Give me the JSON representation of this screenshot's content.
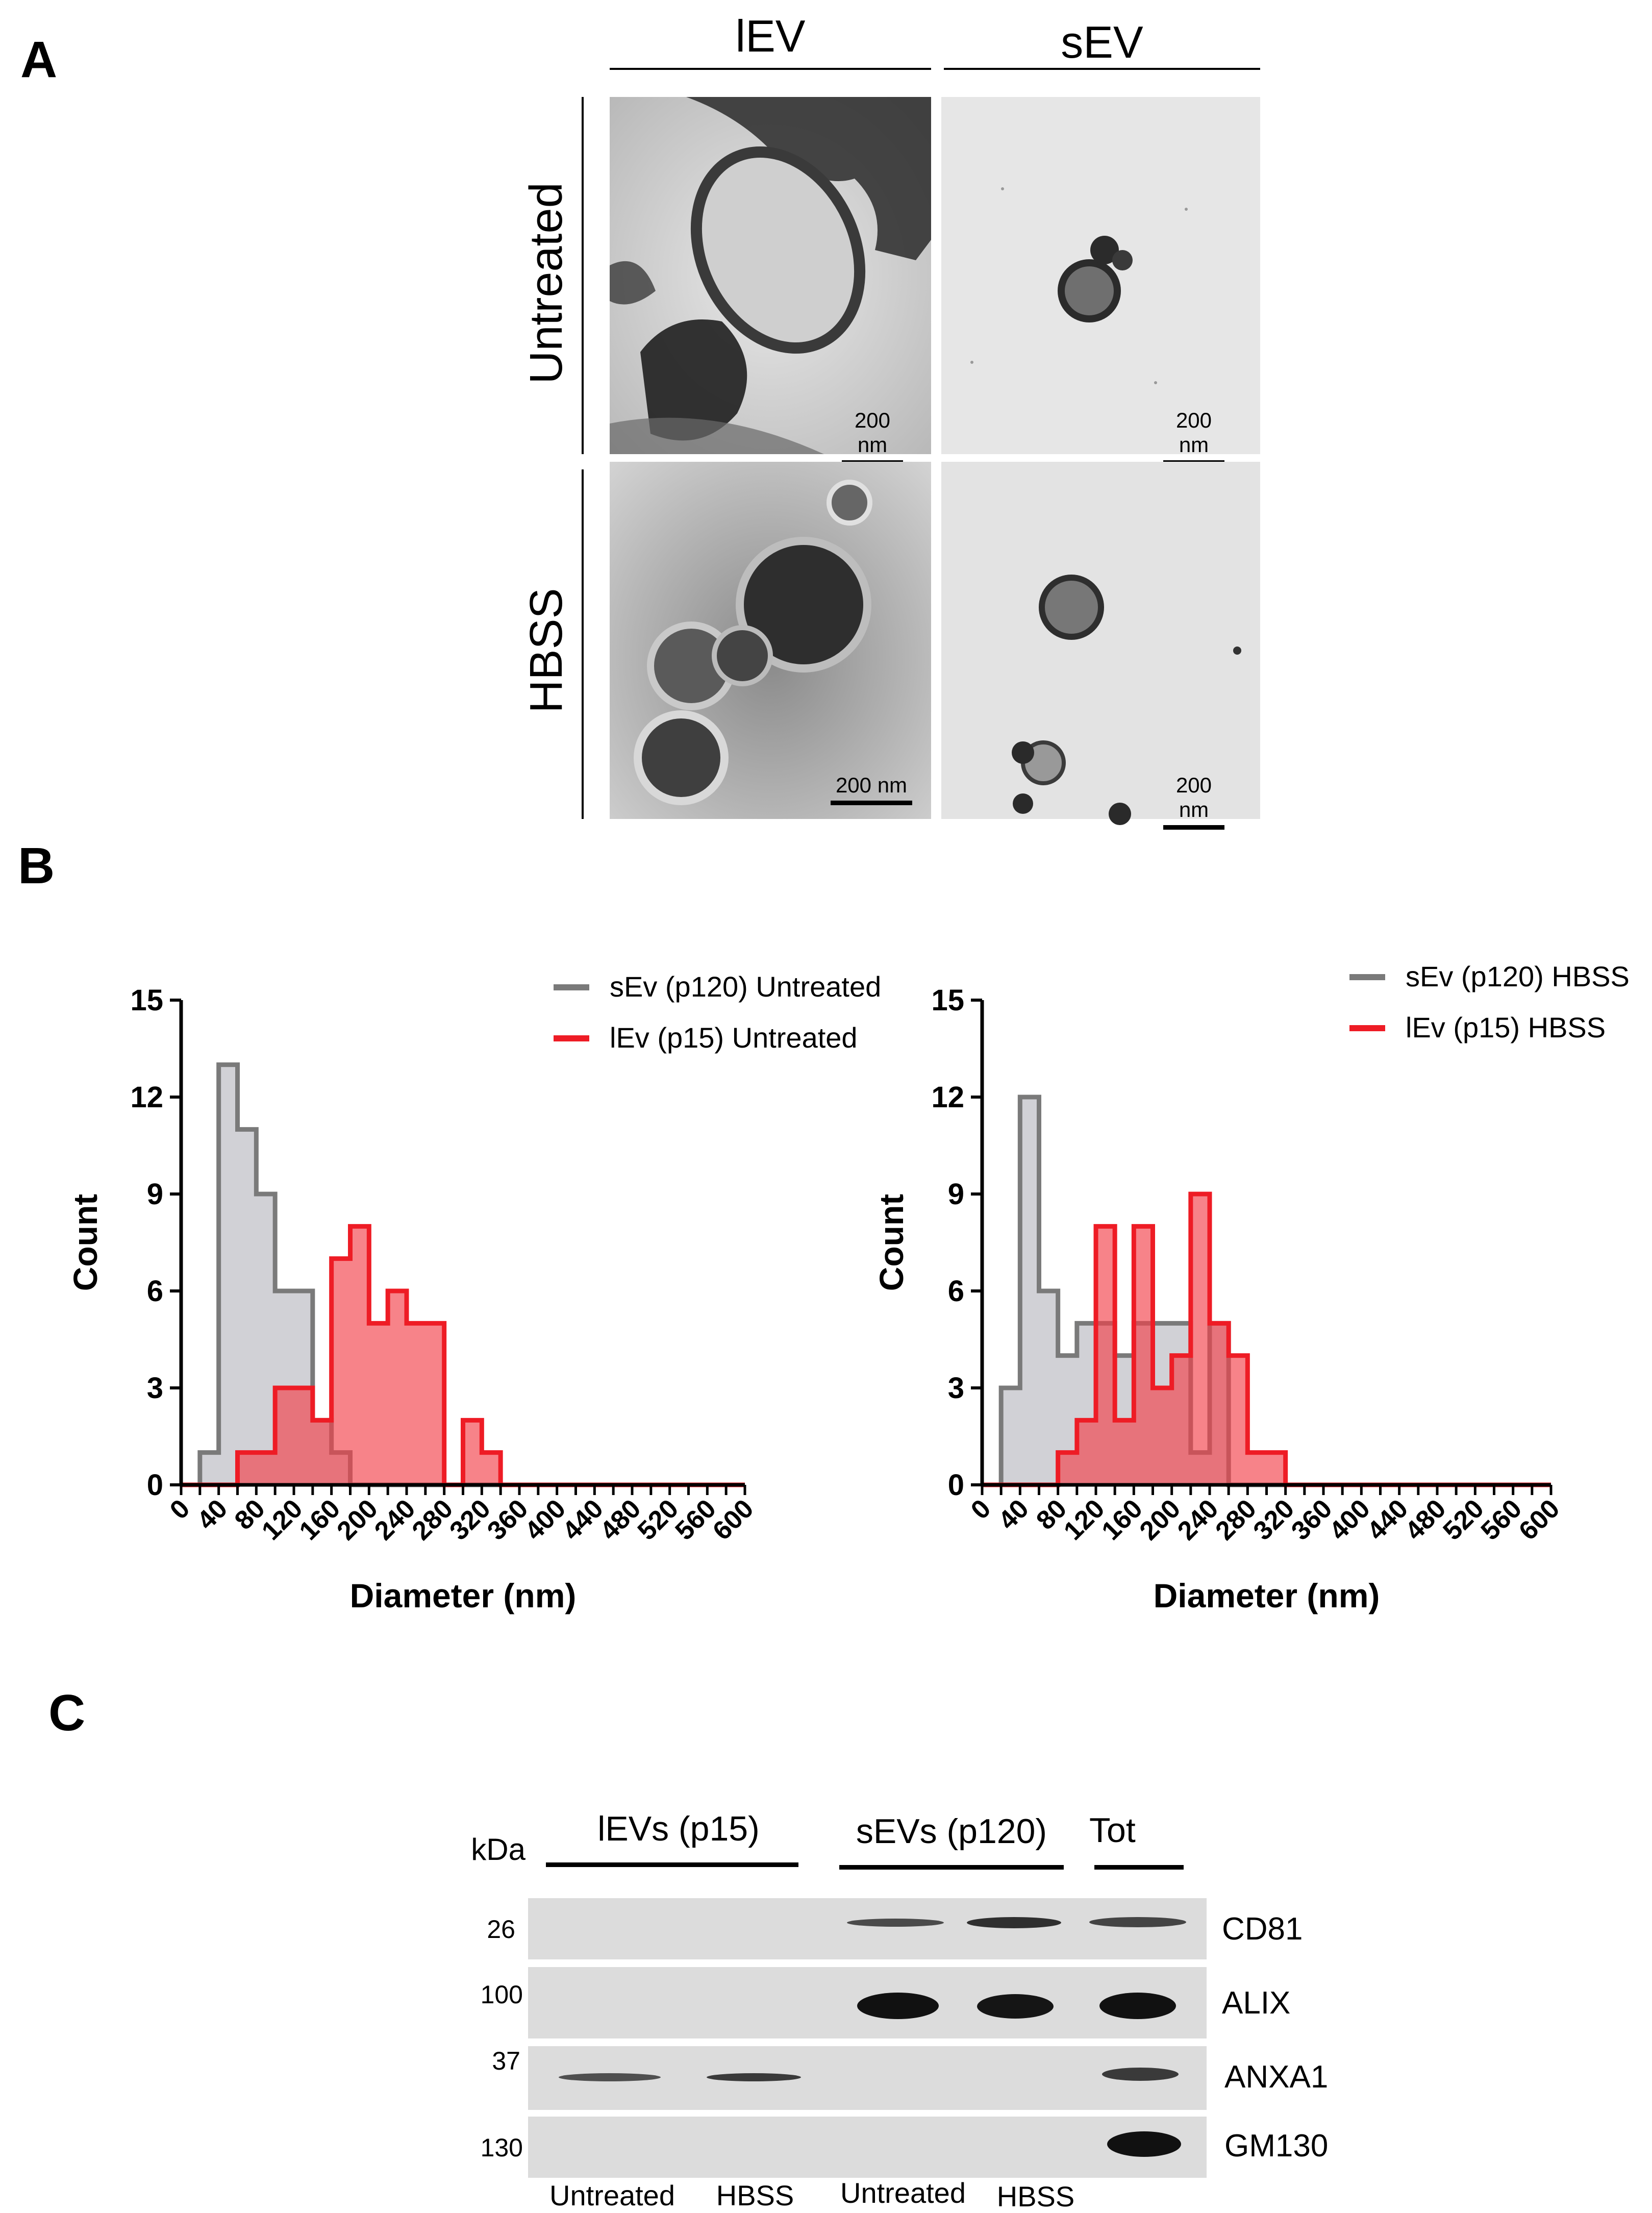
{
  "panels": {
    "a": "A",
    "b": "B",
    "c": "C"
  },
  "panel_a": {
    "col_headers": [
      "lEV",
      "sEV"
    ],
    "row_labels": [
      "Untreated",
      "HBSS"
    ],
    "scale_bar_label": "200 nm"
  },
  "chart_data": [
    {
      "type": "area",
      "step": true,
      "xlabel": "Diameter (nm)",
      "ylabel": "Count",
      "xlim": [
        0,
        600
      ],
      "ylim": [
        0,
        15
      ],
      "x_ticks": [
        "0",
        "40",
        "80",
        "120",
        "160",
        "200",
        "240",
        "280",
        "320",
        "360",
        "400",
        "440",
        "480",
        "520",
        "560",
        "600"
      ],
      "y_ticks": [
        "0",
        "3",
        "6",
        "9",
        "12",
        "15"
      ],
      "legend_position": "top-right",
      "bin_width": 20,
      "bin_start": 0,
      "series": [
        {
          "name": "sEv (p120) Untreated",
          "color": "#7a7a7a",
          "fill": "#b3b3bb",
          "values": [
            0,
            1,
            13,
            11,
            9,
            6,
            6,
            2,
            1,
            0,
            0,
            0,
            0,
            0,
            0,
            0,
            0,
            0,
            0,
            0,
            0,
            0,
            0,
            0,
            0,
            0,
            0,
            0,
            0,
            0
          ]
        },
        {
          "name": "lEv (p15) Untreated",
          "color": "#ee1c25",
          "fill": "#f2404a",
          "values": [
            0,
            0,
            0,
            1,
            1,
            3,
            3,
            2,
            7,
            8,
            5,
            6,
            5,
            5,
            0,
            2,
            1,
            0,
            0,
            0,
            0,
            0,
            0,
            0,
            0,
            0,
            0,
            0,
            0,
            0
          ]
        }
      ]
    },
    {
      "type": "area",
      "step": true,
      "xlabel": "Diameter (nm)",
      "ylabel": "Count",
      "xlim": [
        0,
        600
      ],
      "ylim": [
        0,
        15
      ],
      "x_ticks": [
        "0",
        "40",
        "80",
        "120",
        "160",
        "200",
        "240",
        "280",
        "320",
        "360",
        "400",
        "440",
        "480",
        "520",
        "560",
        "600"
      ],
      "y_ticks": [
        "0",
        "3",
        "6",
        "9",
        "12",
        "15"
      ],
      "legend_position": "top-right",
      "bin_width": 20,
      "bin_start": 0,
      "series": [
        {
          "name": "sEv (p120) HBSS",
          "color": "#7a7a7a",
          "fill": "#b3b3bb",
          "values": [
            0,
            3,
            12,
            6,
            4,
            5,
            5,
            4,
            5,
            5,
            5,
            1,
            5,
            0,
            0,
            0,
            0,
            0,
            0,
            0,
            0,
            0,
            0,
            0,
            0,
            0,
            0,
            0,
            0,
            0
          ]
        },
        {
          "name": "lEv (p15) HBSS",
          "color": "#ee1c25",
          "fill": "#f2404a",
          "values": [
            0,
            0,
            0,
            0,
            1,
            2,
            8,
            2,
            8,
            3,
            4,
            9,
            5,
            4,
            1,
            1,
            0,
            0,
            0,
            0,
            0,
            0,
            0,
            0,
            0,
            0,
            0,
            0,
            0,
            0
          ]
        }
      ]
    }
  ],
  "panel_c": {
    "kda_unit": "kDa",
    "groups": [
      "lEVs (p15)",
      "sEVs (p120)",
      "Tot"
    ],
    "blots": [
      {
        "kda": "26",
        "protein": "CD81"
      },
      {
        "kda": "100",
        "protein": "ALIX"
      },
      {
        "kda": "37",
        "protein": "ANXA1"
      },
      {
        "kda": "130",
        "protein": "GM130"
      }
    ],
    "lanes": [
      "Untreated",
      "HBSS",
      "Untreated",
      "HBSS"
    ]
  }
}
